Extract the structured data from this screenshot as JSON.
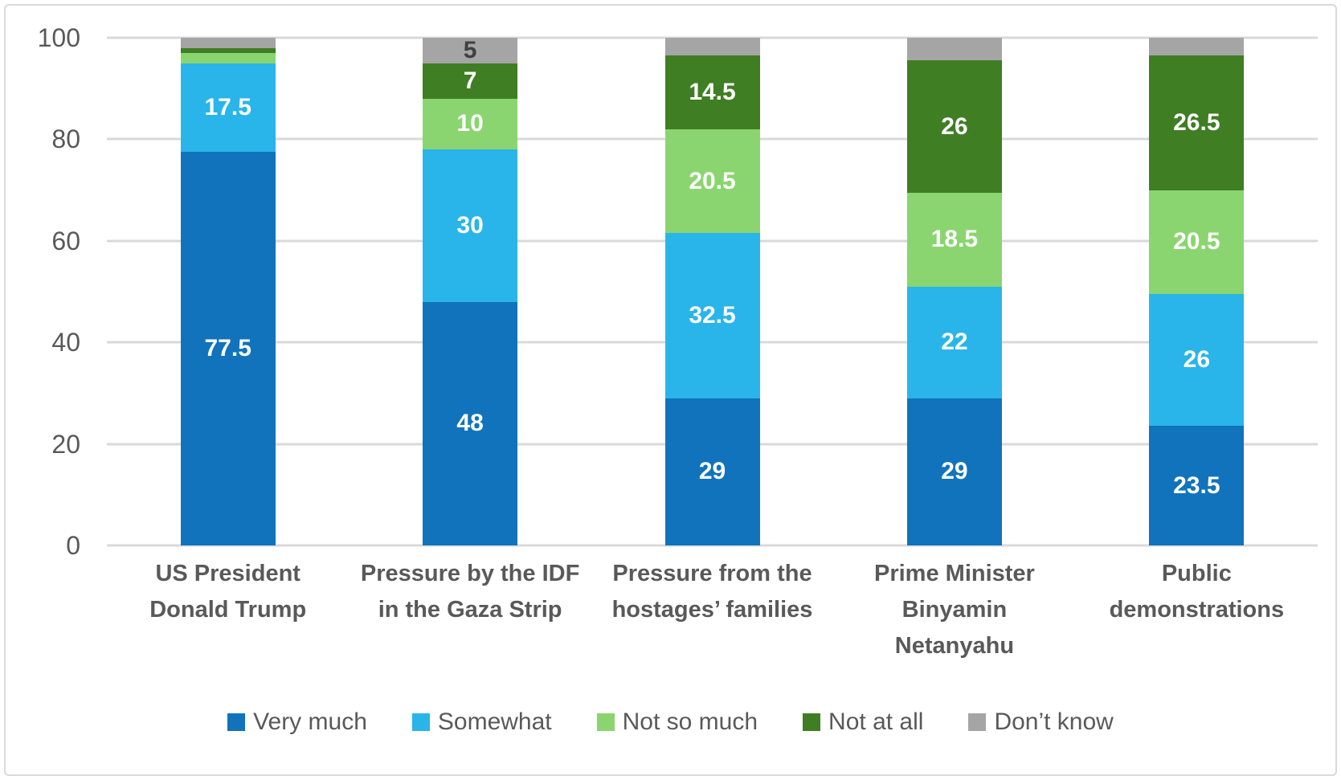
{
  "chart_data": {
    "type": "bar",
    "stacked": true,
    "orientation": "vertical",
    "title": "",
    "xlabel": "",
    "ylabel": "",
    "ylim": [
      0,
      100
    ],
    "yticks": [
      "0",
      "20",
      "40",
      "60",
      "80",
      "100"
    ],
    "grid": true,
    "legend_position": "bottom",
    "categories": [
      "US President Donald Trump",
      "Pressure by the IDF in the Gaza Strip",
      "Pressure from the hostages’ families",
      "Prime Minister Binyamin Netanyahu",
      "Public demonstrations"
    ],
    "series": [
      {
        "name": "Very much",
        "color": "#1173BB",
        "values": [
          77.5,
          48,
          29,
          29,
          23.5
        ],
        "labels": [
          "77.5",
          "48",
          "29",
          "29",
          "23.5"
        ],
        "label_color": "#ffffff"
      },
      {
        "name": "Somewhat",
        "color": "#29B5EA",
        "values": [
          17.5,
          30,
          32.5,
          22,
          26
        ],
        "labels": [
          "17.5",
          "30",
          "32.5",
          "22",
          "26"
        ],
        "label_color": "#ffffff"
      },
      {
        "name": "Not so much",
        "color": "#8AD56F",
        "values": [
          2,
          10,
          20.5,
          18.5,
          20.5
        ],
        "labels": [
          "",
          "10",
          "20.5",
          "18.5",
          "20.5"
        ],
        "label_color": "#ffffff"
      },
      {
        "name": "Not at all",
        "color": "#3F7E23",
        "values": [
          1,
          7,
          14.5,
          26,
          26.5
        ],
        "labels": [
          "",
          "7",
          "14.5",
          "26",
          "26.5"
        ],
        "label_color": "#ffffff"
      },
      {
        "name": "Don’t know",
        "color": "#A5A5A5",
        "values": [
          2,
          5,
          3.5,
          4.5,
          3.5
        ],
        "labels": [
          "",
          "5",
          "",
          "",
          ""
        ],
        "label_color": "#404040"
      }
    ]
  },
  "style": {
    "gridline_color": "#d9d9d9",
    "axis_text_color": "#595959",
    "category_text_color": "#595959",
    "frame_border_color": "#d9d9d9",
    "background": "#ffffff"
  }
}
